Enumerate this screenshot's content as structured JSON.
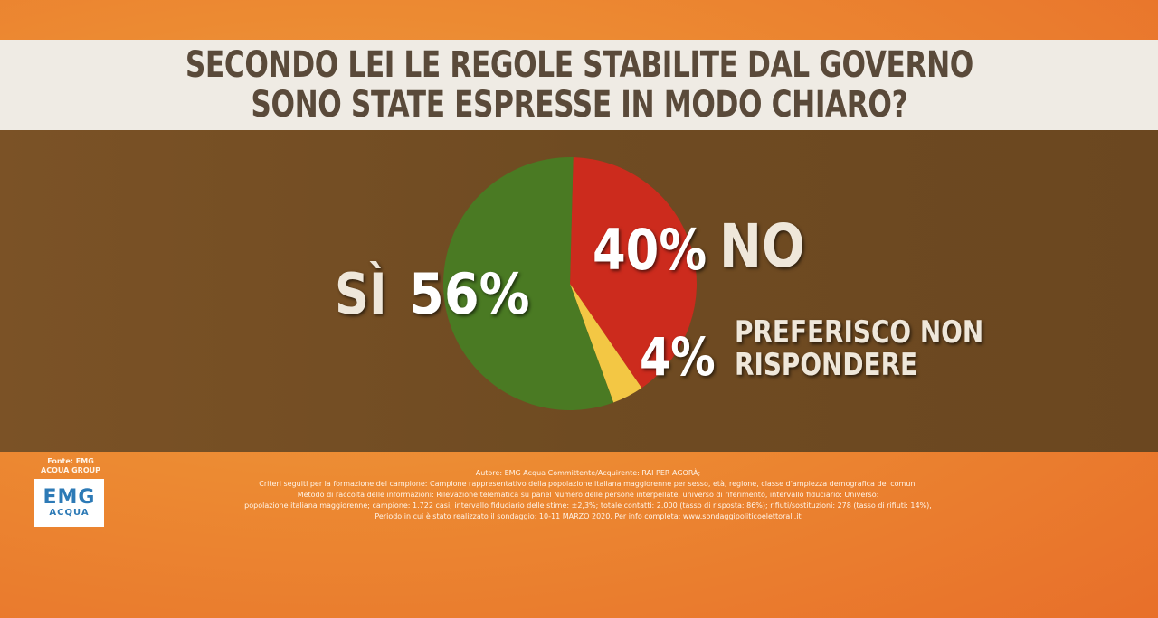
{
  "title": {
    "line1": "SECONDO LEI LE REGOLE STABILITE DAL GOVERNO",
    "line2": "SONO STATE ESPRESSE IN MODO CHIARO?"
  },
  "chart_data": {
    "type": "pie",
    "title": "SECONDO LEI LE REGOLE STABILITE DAL GOVERNO SONO STATE ESPRESSE IN MODO CHIARO?",
    "categories": [
      "SÌ",
      "NO",
      "PREFERISCO NON RISPONDERE"
    ],
    "values": [
      56,
      40,
      4
    ],
    "value_labels": [
      "56%",
      "40%",
      "4%"
    ],
    "colors": [
      "#4a7a23",
      "#cc2b1d",
      "#f3c744"
    ]
  },
  "labels": {
    "si_name": "SÌ",
    "si_value": "56%",
    "no_value": "40%",
    "no_name": "NO",
    "nr_value": "4%",
    "nr_name": "PREFERISCO NON RISPONDERE"
  },
  "source": {
    "label": "Fonte: EMG ACQUA GROUP",
    "logo_top": "EMG",
    "logo_bottom": "ACQUA"
  },
  "notes": [
    "Autore: EMG Acqua Committente/Acquirente: RAI PER AGORÀ;",
    "Criteri seguiti per la formazione del campione: Campione rappresentativo della popolazione italiana maggiorenne per sesso, età, regione, classe d'ampiezza demografica dei comuni",
    "Metodo di raccolta delle informazioni: Rilevazione telematica su panel Numero delle persone interpellate, universo di riferimento, intervallo fiduciario: Universo:",
    "popolazione italiana maggiorenne; campione: 1.722 casi; intervallo fiduciario delle stime: ±2,3%; totale contatti: 2.000 (tasso di risposta: 86%); rifiuti/sostituzioni: 278 (tasso di rifiuti: 14%),",
    "Periodo in cui è stato realizzato il sondaggio: 10-11 MARZO 2020. Per info completa: www.sondaggipoliticoelettorali.it"
  ]
}
